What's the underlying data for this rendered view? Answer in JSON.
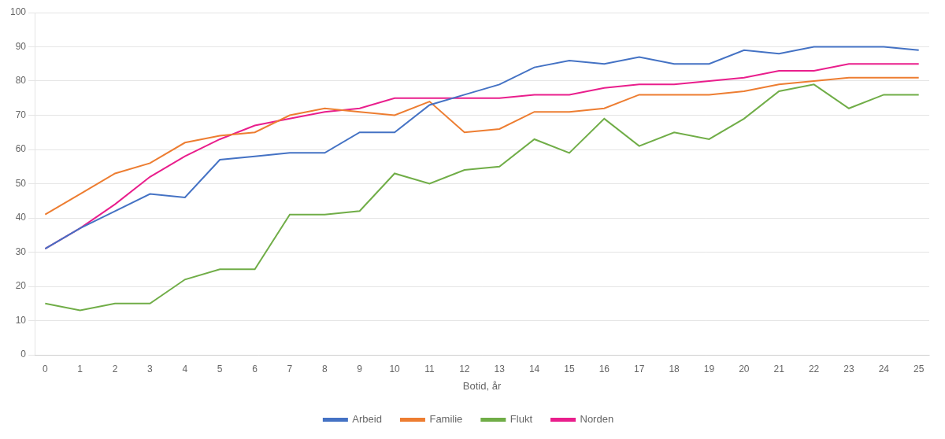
{
  "chart_data": {
    "type": "line",
    "xlabel": "Botid, år",
    "x": [
      0,
      1,
      2,
      3,
      4,
      5,
      6,
      7,
      8,
      9,
      10,
      11,
      12,
      13,
      14,
      15,
      16,
      17,
      18,
      19,
      20,
      21,
      22,
      23,
      24,
      25
    ],
    "series": [
      {
        "name": "Arbeid",
        "color": "#4472C4",
        "values": [
          31,
          37,
          42,
          47,
          46,
          57,
          58,
          59,
          59,
          65,
          65,
          73,
          76,
          79,
          84,
          86,
          85,
          87,
          85,
          85,
          89,
          88,
          90,
          90,
          90,
          89
        ]
      },
      {
        "name": "Familie",
        "color": "#ED7D31",
        "values": [
          41,
          47,
          53,
          56,
          62,
          64,
          65,
          70,
          72,
          71,
          70,
          74,
          65,
          66,
          71,
          71,
          72,
          76,
          76,
          76,
          77,
          79,
          80,
          81,
          81,
          81
        ]
      },
      {
        "name": "Flukt",
        "color": "#70AD47",
        "values": [
          15,
          13,
          15,
          15,
          22,
          25,
          25,
          41,
          41,
          42,
          53,
          50,
          54,
          55,
          63,
          59,
          69,
          61,
          65,
          63,
          69,
          77,
          79,
          72,
          76,
          76
        ]
      },
      {
        "name": "Norden",
        "color": "#E91E8C",
        "values": [
          31,
          37,
          44,
          52,
          58,
          63,
          67,
          69,
          71,
          72,
          75,
          75,
          75,
          75,
          76,
          76,
          78,
          79,
          79,
          80,
          81,
          83,
          83,
          85,
          85,
          85
        ]
      }
    ],
    "xlim": [
      -0.3,
      25.3
    ],
    "xticks": [
      0,
      1,
      2,
      3,
      4,
      5,
      6,
      7,
      8,
      9,
      10,
      11,
      12,
      13,
      14,
      15,
      16,
      17,
      18,
      19,
      20,
      21,
      22,
      23,
      24,
      25
    ],
    "ylim": [
      0,
      100
    ],
    "yticks": [
      0,
      10,
      20,
      30,
      40,
      50,
      60,
      70,
      80,
      90,
      100
    ],
    "grid": "y",
    "legend": "bottom"
  }
}
